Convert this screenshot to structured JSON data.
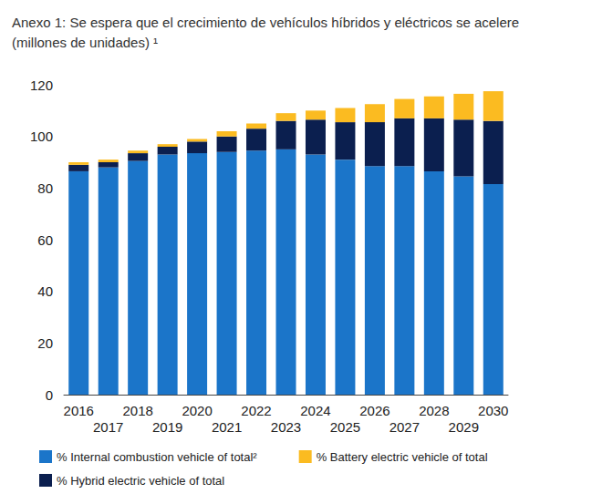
{
  "chart_data": {
    "type": "bar",
    "title": "Anexo 1: Se espera que el crecimiento de vehículos híbridos y eléctricos se acelere (millones de unidades) ¹",
    "stacked": true,
    "legend": "bottom",
    "grid": false,
    "categories": [
      "2016",
      "2017",
      "2018",
      "2019",
      "2020",
      "2021",
      "2022",
      "2023",
      "2024",
      "2025",
      "2026",
      "2027",
      "2028",
      "2029",
      "2030"
    ],
    "series": [
      {
        "name": "% Internal combustion vehicle of total²",
        "color": "#1b75c9",
        "values": [
          86.5,
          88,
          90.5,
          93,
          93.5,
          94,
          94.5,
          95,
          93,
          91,
          88.5,
          88.5,
          86.5,
          84.5,
          81.5
        ]
      },
      {
        "name": "% Hybrid electric vehicle of total",
        "color": "#0b1f4f",
        "values": [
          2.5,
          2,
          3,
          3,
          4.5,
          6,
          8.5,
          11,
          13.5,
          14.5,
          17,
          18.5,
          20.5,
          22,
          24.5
        ]
      },
      {
        "name": "% Battery electric vehicle of total",
        "color": "#fbbb21",
        "values": [
          1,
          1,
          1,
          1,
          1,
          2,
          2,
          3,
          3.5,
          5.5,
          7,
          7.5,
          8.5,
          10,
          11.5
        ]
      }
    ],
    "ylim": [
      0,
      120
    ],
    "yticks": [
      0,
      20,
      40,
      60,
      80,
      100,
      120
    ]
  }
}
